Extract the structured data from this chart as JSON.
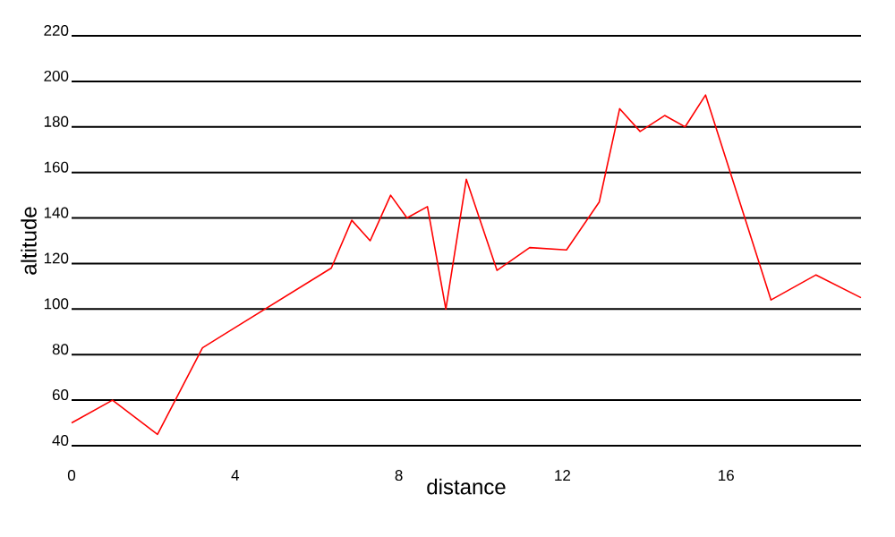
{
  "chart_data": {
    "type": "line",
    "xlabel": "distance",
    "ylabel": "altitude",
    "xlim": [
      0,
      19.3
    ],
    "ylim": [
      40,
      220
    ],
    "xticks": [
      0,
      4,
      8,
      12,
      16
    ],
    "yticks": [
      40,
      60,
      80,
      100,
      120,
      140,
      160,
      180,
      200,
      220
    ],
    "grid": "y",
    "series": [
      {
        "color": "#ff0000",
        "x": [
          0,
          1.0,
          2.1,
          3.2,
          6.35,
          6.85,
          7.3,
          7.8,
          8.2,
          8.7,
          9.15,
          9.65,
          10.4,
          11.2,
          12.1,
          12.9,
          13.4,
          13.9,
          14.5,
          15.0,
          15.5,
          17.1,
          18.2,
          19.3
        ],
        "values": [
          50,
          60,
          45,
          83,
          118,
          139,
          130,
          150,
          140,
          145,
          100,
          157,
          117,
          127,
          126,
          147,
          188,
          178,
          185,
          180,
          194,
          104,
          115,
          105
        ]
      }
    ]
  }
}
